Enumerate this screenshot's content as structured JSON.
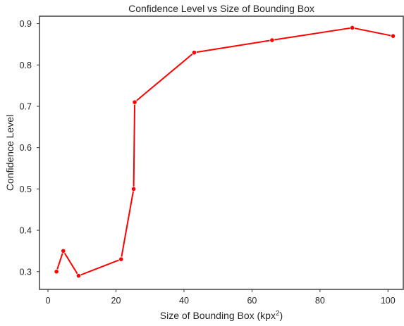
{
  "chart_data": {
    "type": "line",
    "title": "Confidence Level vs Size of Bounding Box",
    "xlabel_main": "Size of Bounding Box (kpx",
    "xlabel_sup": "2",
    "xlabel_end": ")",
    "ylabel": "Confidence Level",
    "xlim": [
      -2.5,
      104.5
    ],
    "ylim": [
      0.257,
      0.918
    ],
    "xticks": [
      0,
      20,
      40,
      60,
      80,
      100
    ],
    "yticks": [
      0.3,
      0.4,
      0.5,
      0.6,
      0.7,
      0.8,
      0.9
    ],
    "xtick_labels": [
      "0",
      "20",
      "40",
      "60",
      "80",
      "100"
    ],
    "ytick_labels": [
      "0.3",
      "0.4",
      "0.5",
      "0.6",
      "0.7",
      "0.8",
      "0.9"
    ],
    "grid": false,
    "series": [
      {
        "color": "#ff0000",
        "marker": "circle",
        "x": [
          2.5,
          4.5,
          9.0,
          21.5,
          25.2,
          25.5,
          43.0,
          65.9,
          89.5,
          101.5
        ],
        "y": [
          0.3,
          0.35,
          0.29,
          0.33,
          0.5,
          0.71,
          0.83,
          0.86,
          0.89,
          0.87
        ]
      }
    ]
  }
}
